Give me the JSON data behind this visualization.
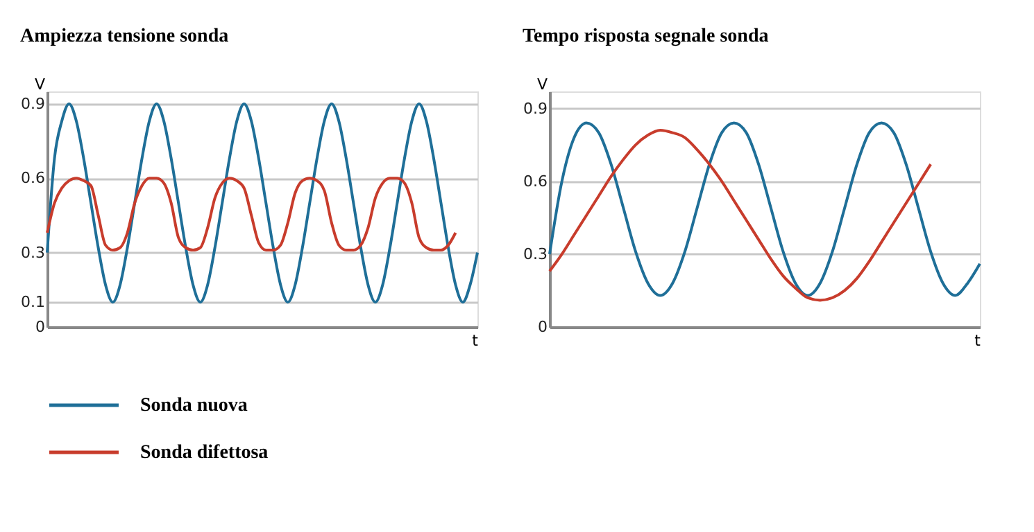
{
  "chart_data": [
    {
      "type": "line",
      "title": "Ampiezza tensione sonda",
      "xlabel": "t",
      "ylabel": "V",
      "ylim": [
        0,
        0.95
      ],
      "yticks": [
        {
          "value": 0,
          "label": "0"
        },
        0.1,
        0.3,
        0.6,
        0.9
      ],
      "grid": "y",
      "tick_labels": "y",
      "legend": "bottom",
      "marker": "none",
      "line_style": "solid",
      "categories": [
        null,
        null,
        null,
        null,
        null,
        null,
        null,
        null,
        null,
        null,
        null,
        null,
        null,
        null,
        null,
        null,
        null,
        null,
        null,
        null,
        null,
        null,
        null,
        null,
        null,
        null,
        null,
        null,
        null,
        null,
        null,
        null,
        null,
        null,
        null,
        null,
        null,
        null,
        null,
        null,
        null,
        null,
        null,
        null,
        null,
        null,
        null,
        null,
        null,
        null,
        null,
        null,
        null,
        null,
        null,
        null,
        null,
        null,
        null,
        null
      ],
      "series": [
        {
          "name": "Sonda nuova",
          "color": "#1f6f98",
          "values": [
            0.3,
            0.68,
            0.83,
            0.9,
            0.83,
            0.68,
            0.5,
            0.32,
            0.17,
            0.1,
            0.17,
            0.32,
            0.5,
            0.68,
            0.83,
            0.9,
            0.83,
            0.68,
            0.5,
            0.32,
            0.17,
            0.1,
            0.17,
            0.32,
            0.5,
            0.68,
            0.83,
            0.9,
            0.83,
            0.68,
            0.5,
            0.32,
            0.17,
            0.1,
            0.17,
            0.32,
            0.5,
            0.68,
            0.83,
            0.9,
            0.83,
            0.68,
            0.5,
            0.32,
            0.17,
            0.1,
            0.17,
            0.32,
            0.5,
            0.68,
            0.83,
            0.9,
            0.83,
            0.68,
            0.5,
            0.32,
            0.17,
            0.1,
            0.17,
            0.3
          ]
        },
        {
          "name": "Sonda difettosa",
          "color": "#c83c2c",
          "values": [
            0.38,
            0.5,
            0.56,
            0.59,
            0.6,
            0.59,
            0.57,
            0.45,
            0.33,
            0.31,
            0.32,
            0.38,
            0.5,
            0.57,
            0.6,
            0.6,
            0.58,
            0.5,
            0.36,
            0.32,
            0.31,
            0.32,
            0.4,
            0.52,
            0.58,
            0.6,
            0.59,
            0.56,
            0.45,
            0.34,
            0.31,
            0.31,
            0.33,
            0.42,
            0.54,
            0.59,
            0.6,
            0.59,
            0.55,
            0.42,
            0.33,
            0.31,
            0.31,
            0.33,
            0.4,
            0.52,
            0.58,
            0.6,
            0.6,
            0.58,
            0.5,
            0.36,
            0.32,
            0.31,
            0.31,
            0.33,
            0.38,
            null,
            null,
            null
          ]
        }
      ]
    },
    {
      "type": "line",
      "title": "Tempo risposta segnale sonda",
      "xlabel": "t",
      "ylabel": "V",
      "ylim": [
        0,
        0.97
      ],
      "yticks": [
        {
          "value": 0,
          "label": "0"
        },
        0.3,
        0.6,
        0.9
      ],
      "grid": "y",
      "tick_labels": "y",
      "marker": "none",
      "line_style": "solid",
      "categories": [
        null,
        null,
        null,
        null,
        null,
        null,
        null,
        null,
        null,
        null,
        null,
        null,
        null,
        null,
        null,
        null,
        null,
        null,
        null,
        null,
        null,
        null,
        null,
        null,
        null,
        null,
        null,
        null,
        null,
        null,
        null,
        null,
        null,
        null,
        null,
        null
      ],
      "series": [
        {
          "color": "#1f6f98",
          "values": [
            0.3,
            0.6,
            0.78,
            0.84,
            0.8,
            0.67,
            0.49,
            0.31,
            0.18,
            0.13,
            0.18,
            0.31,
            0.49,
            0.67,
            0.8,
            0.84,
            0.8,
            0.67,
            0.49,
            0.31,
            0.18,
            0.13,
            0.18,
            0.31,
            0.49,
            0.67,
            0.8,
            0.84,
            0.8,
            0.67,
            0.49,
            0.31,
            0.18,
            0.13,
            0.18,
            0.26
          ]
        },
        {
          "color": "#c83c2c",
          "values": [
            0.23,
            0.3,
            0.38,
            0.46,
            0.54,
            0.62,
            0.69,
            0.75,
            0.79,
            0.81,
            0.8,
            0.78,
            0.73,
            0.67,
            0.6,
            0.52,
            0.44,
            0.36,
            0.28,
            0.21,
            0.16,
            0.12,
            0.11,
            0.12,
            0.15,
            0.2,
            0.27,
            0.35,
            0.43,
            0.51,
            0.59,
            0.67,
            null,
            null,
            null,
            null
          ]
        }
      ]
    }
  ]
}
